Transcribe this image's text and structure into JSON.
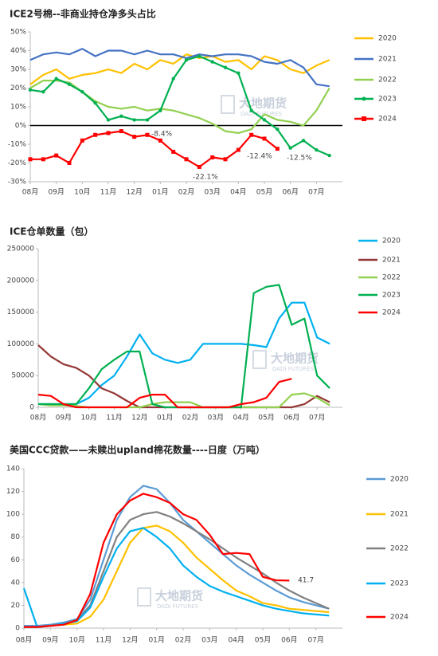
{
  "watermark": [
    "大地期货",
    "DADI FUTURES"
  ],
  "chart_data": [
    {
      "type": "line",
      "title": "ICE2号棉--非商业持仓净多头占比",
      "categories": [
        "08月",
        null,
        "09月",
        null,
        "10月",
        null,
        "11月",
        null,
        "12月",
        null,
        "01月",
        null,
        "02月",
        null,
        "03月",
        null,
        "04月",
        null,
        "05月",
        null,
        "06月",
        null,
        "07月",
        null
      ],
      "ylim": [
        -30,
        50
      ],
      "yticks": [
        {
          "value": -30,
          "label": "-30%"
        },
        {
          "value": -20,
          "label": "-20%"
        },
        {
          "value": -10,
          "label": "-10%"
        },
        {
          "value": 0,
          "label": "0%"
        },
        {
          "value": 10,
          "label": "10%"
        },
        {
          "value": 20,
          "label": "20%"
        },
        {
          "value": 30,
          "label": "30%"
        },
        {
          "value": 40,
          "label": "40%"
        },
        {
          "value": 50,
          "label": "50%"
        }
      ],
      "grid": false,
      "series": [
        {
          "name": "2020",
          "color": "#ffc000",
          "values": [
            22,
            27,
            30,
            25,
            27,
            28,
            30,
            28,
            33,
            30,
            35,
            33,
            38,
            36,
            37,
            34,
            35,
            30,
            37,
            35,
            30,
            28,
            32,
            35
          ]
        },
        {
          "name": "2021",
          "color": "#4472c4",
          "values": [
            35,
            38,
            39,
            38,
            41,
            37,
            40,
            40,
            38,
            40,
            38,
            38,
            36,
            38,
            37,
            38,
            38,
            37,
            34,
            33,
            35,
            31,
            22,
            21
          ]
        },
        {
          "name": "2022",
          "color": "#92d050",
          "values": [
            20,
            24,
            24,
            23,
            18,
            13,
            10,
            9,
            10,
            8,
            9,
            8,
            6,
            4,
            1,
            -3,
            -4,
            -2,
            6,
            3,
            2,
            0,
            8,
            20
          ]
        },
        {
          "name": "2023",
          "color": "#00b050",
          "marker": "circle",
          "values": [
            19,
            18,
            25,
            22,
            18,
            12,
            3,
            5,
            3,
            3,
            8,
            25,
            35,
            37,
            34,
            31,
            28,
            8,
            3,
            -2,
            -12,
            -8,
            -13,
            -16
          ]
        },
        {
          "name": "2024",
          "color": "#ff0000",
          "marker": "square",
          "values": [
            -18,
            -18,
            -16,
            -20,
            -8,
            -5,
            -4,
            -3,
            -6,
            -5,
            -8,
            -14,
            -18,
            -22.1,
            -17,
            -18,
            -13,
            -5,
            -7,
            -12.4,
            null,
            null,
            null,
            null
          ]
        }
      ],
      "annotations": [
        "-8.4%",
        "-22.1%",
        "-12.4%",
        "-12.5%"
      ]
    },
    {
      "type": "line",
      "title": "ICE仓单数量（包）",
      "categories": [
        "08月",
        null,
        "09月",
        null,
        "10月",
        null,
        "11月",
        null,
        "12月",
        null,
        "01月",
        null,
        "02月",
        null,
        "03月",
        null,
        "04月",
        null,
        "05月",
        null,
        "06月",
        null,
        "07月",
        null
      ],
      "ylim": [
        0,
        250000
      ],
      "yticks": [
        0,
        50000,
        100000,
        150000,
        200000,
        250000
      ],
      "grid": false,
      "series": [
        {
          "name": "2020",
          "color": "#00b0f0",
          "values": [
            5000,
            5000,
            5000,
            5000,
            15000,
            35000,
            50000,
            80000,
            115000,
            85000,
            75000,
            70000,
            75000,
            100000,
            100000,
            100000,
            100000,
            98000,
            95000,
            140000,
            165000,
            165000,
            110000,
            100000
          ]
        },
        {
          "name": "2021",
          "color": "#953735",
          "values": [
            98000,
            80000,
            68000,
            62000,
            50000,
            30000,
            22000,
            10000,
            0,
            0,
            0,
            0,
            0,
            0,
            0,
            0,
            0,
            0,
            0,
            0,
            0,
            5000,
            18000,
            8000
          ]
        },
        {
          "name": "2022",
          "color": "#92d050",
          "values": [
            5000,
            3000,
            3000,
            2000,
            0,
            0,
            0,
            0,
            0,
            5000,
            8000,
            8000,
            8000,
            0,
            0,
            0,
            0,
            0,
            0,
            0,
            20000,
            22000,
            15000,
            3000
          ]
        },
        {
          "name": "2023",
          "color": "#00b050",
          "values": [
            5000,
            5000,
            5000,
            5000,
            30000,
            60000,
            75000,
            88000,
            88000,
            5000,
            0,
            0,
            0,
            0,
            0,
            0,
            0,
            180000,
            190000,
            193000,
            130000,
            140000,
            50000,
            30000
          ]
        },
        {
          "name": "2024",
          "color": "#ff0000",
          "values": [
            20000,
            18000,
            5000,
            0,
            0,
            0,
            0,
            0,
            15000,
            20000,
            20000,
            0,
            0,
            0,
            0,
            0,
            5000,
            8000,
            15000,
            40000,
            45000,
            null,
            null,
            null
          ]
        }
      ]
    },
    {
      "type": "line",
      "title": "美国CCC贷款——未赎出upland棉花数量----日度（万吨）",
      "categories": [
        "08月",
        null,
        "09月",
        null,
        "10月",
        null,
        "11月",
        null,
        "12月",
        null,
        "01月",
        null,
        "02月",
        null,
        "03月",
        null,
        "04月",
        null,
        "05月",
        null,
        "06月",
        null,
        "07月",
        null
      ],
      "ylim": [
        0,
        140
      ],
      "yticks": [
        0,
        20,
        40,
        60,
        80,
        100,
        120,
        140
      ],
      "grid": false,
      "series": [
        {
          "name": "2020",
          "color": "#5b9bd5",
          "values": [
            2,
            2,
            3,
            5,
            8,
            25,
            60,
            95,
            115,
            125,
            122,
            110,
            95,
            85,
            75,
            65,
            55,
            47,
            40,
            33,
            27,
            23,
            20,
            17
          ]
        },
        {
          "name": "2021",
          "color": "#ffc000",
          "values": [
            1,
            1,
            2,
            3,
            4,
            10,
            25,
            50,
            75,
            88,
            90,
            85,
            75,
            62,
            52,
            42,
            33,
            28,
            22,
            20,
            17,
            16,
            15,
            14
          ]
        },
        {
          "name": "2022",
          "color": "#808080",
          "values": [
            1,
            1,
            2,
            4,
            7,
            20,
            50,
            80,
            95,
            100,
            102,
            98,
            92,
            85,
            78,
            70,
            62,
            55,
            48,
            40,
            33,
            27,
            22,
            17
          ]
        },
        {
          "name": "2023",
          "color": "#00b0f0",
          "values": [
            35,
            1,
            2,
            4,
            6,
            18,
            45,
            70,
            85,
            88,
            80,
            70,
            55,
            45,
            37,
            32,
            28,
            24,
            20,
            17,
            15,
            13,
            12,
            11
          ]
        },
        {
          "name": "2024",
          "color": "#ff0000",
          "values": [
            1,
            1,
            2,
            3,
            7,
            30,
            75,
            100,
            112,
            118,
            115,
            110,
            100,
            95,
            82,
            65,
            66,
            65,
            45,
            42,
            41.7,
            null,
            null,
            null
          ]
        }
      ],
      "annotations": [
        "41.7"
      ]
    }
  ]
}
